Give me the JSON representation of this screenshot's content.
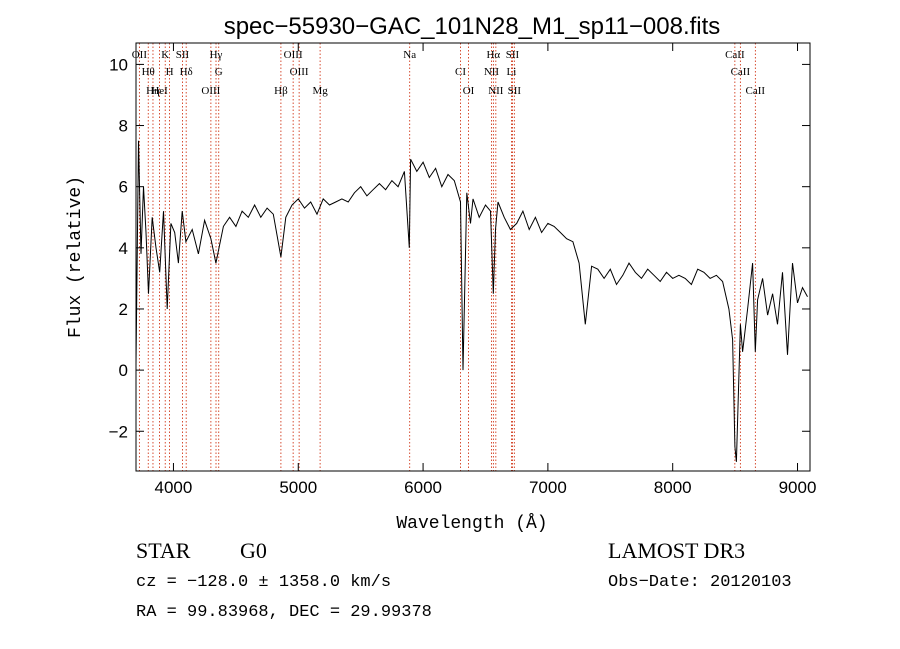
{
  "chart_data": {
    "type": "line",
    "title": "spec−55930−GAC_101N28_M1_sp11−008.fits",
    "xlabel": "Wavelength (Å)",
    "ylabel": "Flux (relative)",
    "xlim": [
      3700,
      9100
    ],
    "ylim": [
      -3.3,
      10.7
    ],
    "xticks": [
      4000,
      5000,
      6000,
      7000,
      8000,
      9000
    ],
    "xtick_labels": [
      "4000",
      "5000",
      "6000",
      "7000",
      "8000",
      "9000"
    ],
    "yticks": [
      -2,
      0,
      2,
      4,
      6,
      8,
      10
    ],
    "ytick_labels": [
      "−2",
      "0",
      "2",
      "4",
      "6",
      "8",
      "10"
    ],
    "grid": false,
    "series": [
      {
        "name": "flux",
        "x": [
          3700,
          3720,
          3740,
          3760,
          3780,
          3800,
          3830,
          3860,
          3890,
          3920,
          3950,
          3980,
          4010,
          4040,
          4070,
          4100,
          4150,
          4200,
          4250,
          4300,
          4340,
          4400,
          4450,
          4500,
          4550,
          4600,
          4650,
          4700,
          4750,
          4800,
          4861,
          4900,
          4950,
          5000,
          5050,
          5100,
          5150,
          5200,
          5250,
          5300,
          5350,
          5400,
          5450,
          5500,
          5550,
          5600,
          5650,
          5700,
          5750,
          5800,
          5850,
          5890,
          5900,
          5950,
          6000,
          6050,
          6100,
          6150,
          6200,
          6250,
          6300,
          6320,
          6350,
          6380,
          6400,
          6450,
          6500,
          6540,
          6563,
          6580,
          6600,
          6650,
          6700,
          6750,
          6800,
          6850,
          6900,
          6950,
          7000,
          7050,
          7100,
          7150,
          7200,
          7250,
          7300,
          7350,
          7400,
          7450,
          7500,
          7550,
          7600,
          7650,
          7700,
          7750,
          7800,
          7850,
          7900,
          7950,
          8000,
          8050,
          8100,
          8150,
          8200,
          8250,
          8300,
          8350,
          8400,
          8450,
          8480,
          8498,
          8510,
          8542,
          8560,
          8600,
          8640,
          8662,
          8680,
          8720,
          8760,
          8800,
          8840,
          8880,
          8920,
          8960,
          9000,
          9040,
          9080
        ],
        "values": [
          0.2,
          7.5,
          3.8,
          6.0,
          4.5,
          2.5,
          5.0,
          4.0,
          3.2,
          5.2,
          2.0,
          4.8,
          4.5,
          3.5,
          5.2,
          4.2,
          4.6,
          3.8,
          4.9,
          4.3,
          3.5,
          4.7,
          5.0,
          4.7,
          5.2,
          5.0,
          5.4,
          5.0,
          5.3,
          5.1,
          3.7,
          5.0,
          5.4,
          5.6,
          5.3,
          5.5,
          5.1,
          5.6,
          5.4,
          5.5,
          5.6,
          5.5,
          5.8,
          6.0,
          5.7,
          5.9,
          6.1,
          5.9,
          6.2,
          6.0,
          6.5,
          4.0,
          6.9,
          6.5,
          6.8,
          6.3,
          6.6,
          6.0,
          6.4,
          6.2,
          5.5,
          0.0,
          5.8,
          4.8,
          5.6,
          5.0,
          5.4,
          5.2,
          2.5,
          4.6,
          5.5,
          5.0,
          4.6,
          4.8,
          5.2,
          4.6,
          5.0,
          4.5,
          4.8,
          4.7,
          4.5,
          4.3,
          4.2,
          3.5,
          1.5,
          3.4,
          3.3,
          3.0,
          3.3,
          2.8,
          3.1,
          3.5,
          3.2,
          3.0,
          3.3,
          3.1,
          2.9,
          3.2,
          3.0,
          3.1,
          3.0,
          2.8,
          3.3,
          3.2,
          3.0,
          3.1,
          2.9,
          2.0,
          1.0,
          -2.5,
          -3.0,
          1.5,
          0.6,
          2.0,
          3.5,
          0.6,
          2.3,
          3.0,
          1.8,
          2.5,
          1.5,
          3.2,
          0.5,
          3.5,
          2.2,
          2.7,
          2.4
        ]
      }
    ],
    "lines": [
      {
        "name": "OII",
        "wavelength": 3727
      },
      {
        "name": "Hθ",
        "wavelength": 3798
      },
      {
        "name": "Hη",
        "wavelength": 3836
      },
      {
        "name": "K",
        "wavelength": 3934
      },
      {
        "name": "H",
        "wavelength": 3969
      },
      {
        "name": "HeI",
        "wavelength": 3889
      },
      {
        "name": "SII",
        "wavelength": 4072
      },
      {
        "name": "Hδ",
        "wavelength": 4102
      },
      {
        "name": "OIII",
        "wavelength": 4300
      },
      {
        "name": "Hγ",
        "wavelength": 4341
      },
      {
        "name": "G",
        "wavelength": 4363
      },
      {
        "name": "Hβ",
        "wavelength": 4861
      },
      {
        "name": "OIII",
        "wavelength": 4959
      },
      {
        "name": "OIII",
        "wavelength": 5007
      },
      {
        "name": "Mg",
        "wavelength": 5175
      },
      {
        "name": "Na",
        "wavelength": 5893
      },
      {
        "name": "CI",
        "wavelength": 6300
      },
      {
        "name": "OI",
        "wavelength": 6364
      },
      {
        "name": "Hα",
        "wavelength": 6563
      },
      {
        "name": "NII",
        "wavelength": 6548
      },
      {
        "name": "NII",
        "wavelength": 6583
      },
      {
        "name": "SII",
        "wavelength": 6716
      },
      {
        "name": "Li",
        "wavelength": 6708
      },
      {
        "name": "SII",
        "wavelength": 6731
      },
      {
        "name": "CaII",
        "wavelength": 8498
      },
      {
        "name": "CaII",
        "wavelength": 8542
      },
      {
        "name": "CaII",
        "wavelength": 8662
      }
    ]
  },
  "info": {
    "class_label": "STAR",
    "subclass": "G0",
    "survey": "LAMOST DR3",
    "cz_line": "cz = −128.0 ± 1358.0 km/s",
    "obs_date": "Obs−Date: 20120103",
    "radec_line": "RA =  99.83968, DEC =  29.99378"
  },
  "colors": {
    "spectrum": "#000000",
    "line_marker": "#cc2200",
    "axis": "#000000"
  }
}
